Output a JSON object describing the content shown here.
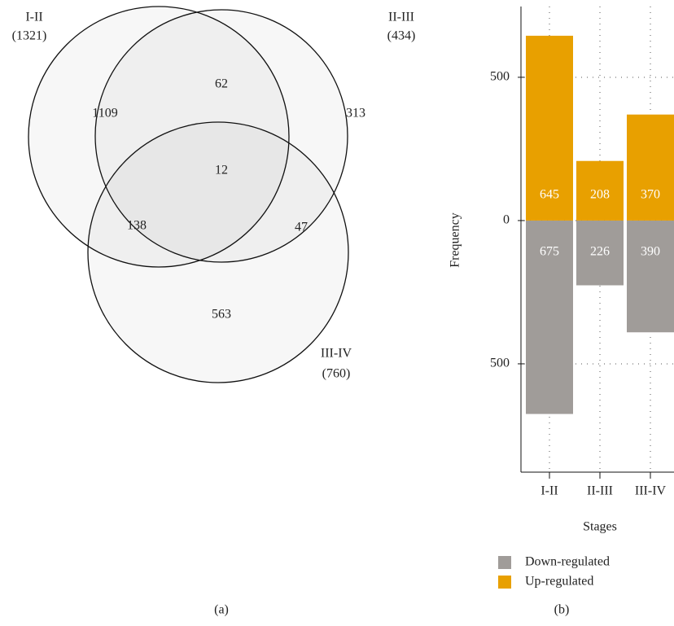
{
  "chart_data": [
    {
      "type": "venn",
      "caption": "(a)",
      "sets": [
        {
          "name": "I-II",
          "size": 1321,
          "size_label": "(1321)"
        },
        {
          "name": "II-III",
          "size": 434,
          "size_label": "(434)"
        },
        {
          "name": "III-IV",
          "size": 760,
          "size_label": "(760)"
        }
      ],
      "regions": [
        1109,
        62,
        313,
        12,
        138,
        47,
        563
      ]
    },
    {
      "type": "bar",
      "caption": "(b)",
      "x_label": "Stages",
      "y_label": "Frequency",
      "categories": [
        "I-II",
        "II-III",
        "III-IV"
      ],
      "series": [
        {
          "name": "Down-regulated",
          "color": "#a09c99",
          "values": [
            -675,
            -226,
            -390
          ],
          "value_labels": [
            "675",
            "226",
            "390"
          ]
        },
        {
          "name": "Up-regulated",
          "color": "#e8a000",
          "values": [
            645,
            208,
            370
          ]
        }
      ],
      "ylim": [
        -878,
        747
      ],
      "yticks": [
        {
          "value": -500,
          "label": "500"
        },
        0,
        500
      ],
      "grid": true,
      "legend": "bottom"
    }
  ]
}
